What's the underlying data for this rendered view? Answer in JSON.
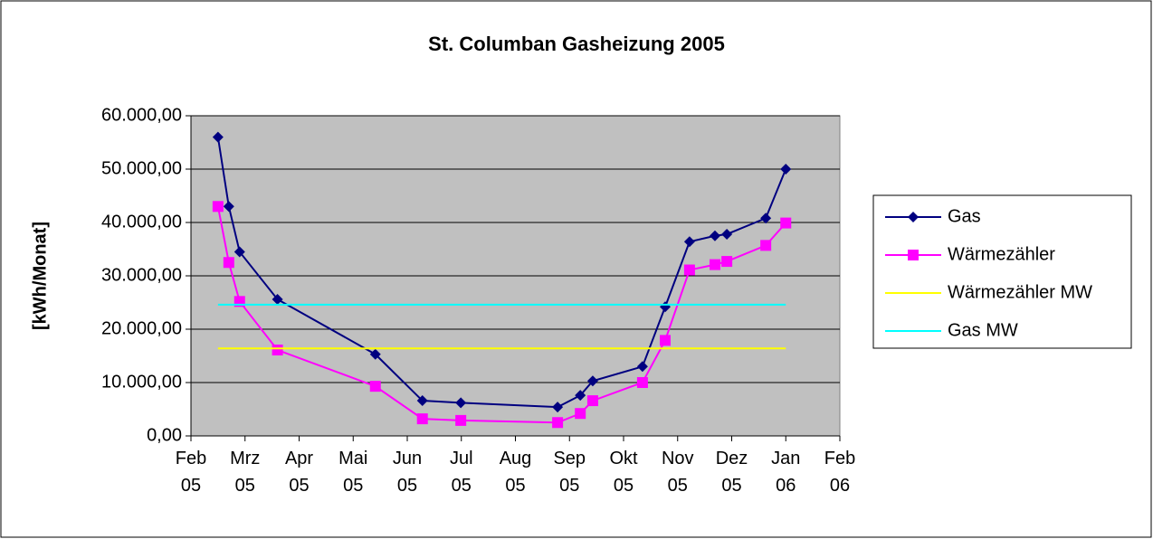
{
  "chart_data": {
    "type": "line",
    "title": "St. Columban Gasheizung 2005",
    "y_label": "[kWh/Monat]",
    "xlim": [
      0,
      12
    ],
    "xticks": [
      {
        "value": 0,
        "label": "Feb\n05"
      },
      {
        "value": 1,
        "label": "Mrz\n05"
      },
      {
        "value": 2,
        "label": "Apr\n05"
      },
      {
        "value": 3,
        "label": "Mai\n05"
      },
      {
        "value": 4,
        "label": "Jun\n05"
      },
      {
        "value": 5,
        "label": "Jul\n05"
      },
      {
        "value": 6,
        "label": "Aug\n05"
      },
      {
        "value": 7,
        "label": "Sep\n05"
      },
      {
        "value": 8,
        "label": "Okt\n05"
      },
      {
        "value": 9,
        "label": "Nov\n05"
      },
      {
        "value": 10,
        "label": "Dez\n05"
      },
      {
        "value": 11,
        "label": "Jan\n06"
      },
      {
        "value": 12,
        "label": "Feb\n06"
      }
    ],
    "ylim": [
      0,
      60000
    ],
    "yticks": [
      {
        "value": 0,
        "label": "0,00"
      },
      {
        "value": 10000,
        "label": "10.000,00"
      },
      {
        "value": 20000,
        "label": "20.000,00"
      },
      {
        "value": 30000,
        "label": "30.000,00"
      },
      {
        "value": 40000,
        "label": "40.000,00"
      },
      {
        "value": 50000,
        "label": "50.000,00"
      },
      {
        "value": 60000,
        "label": "60.000,00"
      }
    ],
    "grid": true,
    "legend": "right",
    "x": [
      0.5,
      0.7,
      0.9,
      1.6,
      3.41,
      4.28,
      4.99,
      6.78,
      7.2,
      7.43,
      8.35,
      8.77,
      9.22,
      9.69,
      9.91,
      10.63,
      11.0
    ],
    "series": [
      {
        "name": "Gas",
        "color": "#000080",
        "marker": "diamond",
        "values": [
          56000,
          43000,
          34500,
          25600,
          15300,
          6600,
          6200,
          5400,
          7600,
          10300,
          13000,
          24200,
          36400,
          37500,
          37800,
          40800,
          50000
        ]
      },
      {
        "name": "Wärmezähler",
        "color": "#ff00ff",
        "marker": "square",
        "values": [
          43000,
          32500,
          25200,
          16100,
          9300,
          3200,
          2900,
          2500,
          4200,
          6600,
          10000,
          17900,
          31100,
          32100,
          32700,
          35700,
          39900
        ]
      },
      {
        "name": "Wärmezähler MW",
        "color": "#ffff00",
        "x": [
          0.5,
          11.0
        ],
        "values": [
          16400,
          16400
        ]
      },
      {
        "name": "Gas MW",
        "color": "#00ffff",
        "x": [
          0.5,
          11.0
        ],
        "values": [
          24600,
          24600
        ]
      }
    ]
  }
}
